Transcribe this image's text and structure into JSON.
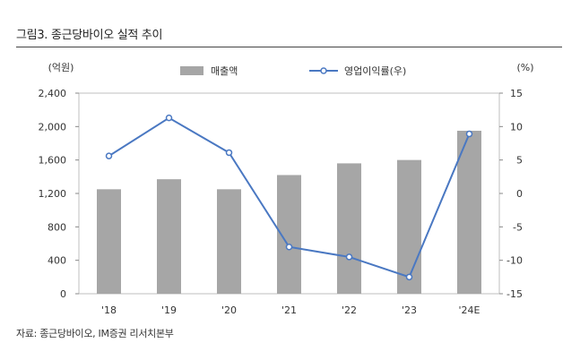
{
  "title": "그림3. 종근당바이오 실적 추이",
  "source": "자료: 종근당바이오, IM증권 리서치본부",
  "chart_data": {
    "type": "bar",
    "categories": [
      "'18",
      "'19",
      "'20",
      "'21",
      "'22",
      "'23",
      "'24E"
    ],
    "left_unit": "(억원)",
    "right_unit": "(%)",
    "left_ticks": [
      "0",
      "400",
      "800",
      "1,200",
      "1,600",
      "2,000",
      "2,400"
    ],
    "right_ticks": [
      "-15",
      "-10",
      "-5",
      "0",
      "5",
      "10",
      "15"
    ],
    "ylim_left": [
      0,
      2400
    ],
    "ylim_right": [
      -15,
      15
    ],
    "grid": false,
    "legend_position": "top",
    "series": [
      {
        "name": "매출액",
        "type": "bar",
        "axis": "left",
        "color": "#a6a6a6",
        "values": [
          1250,
          1370,
          1250,
          1420,
          1560,
          1600,
          1950
        ]
      },
      {
        "name": "영업이익률(우)",
        "type": "line",
        "axis": "right",
        "color": "#4a78c2",
        "values": [
          5.6,
          11.3,
          6.1,
          -8.0,
          -9.5,
          -12.5,
          8.9
        ]
      }
    ]
  }
}
